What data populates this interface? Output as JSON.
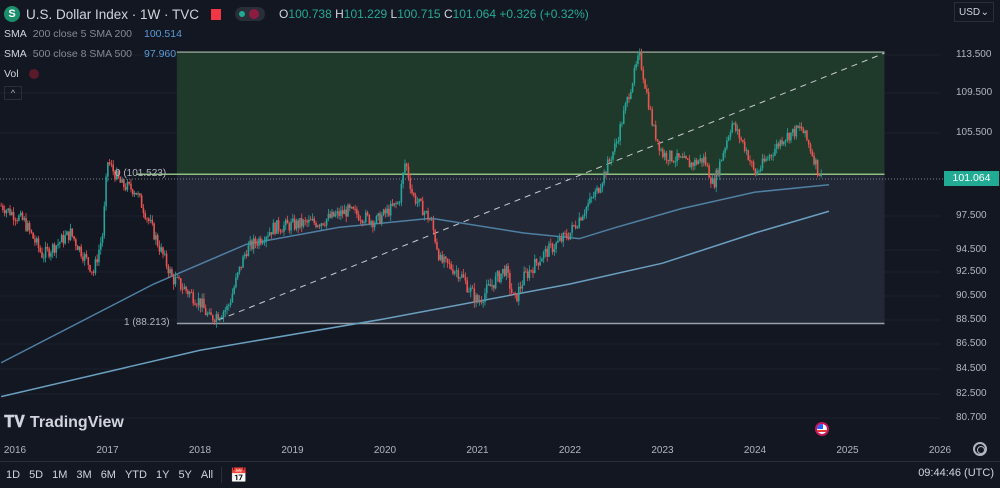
{
  "header": {
    "symbol_title": "U.S. Dollar Index · 1W · TVC",
    "logo_letter": "S",
    "ohlc": {
      "o_label": "O",
      "o": "100.738",
      "h_label": "H",
      "h": "101.229",
      "l_label": "L",
      "l": "100.715",
      "c_label": "C",
      "c": "101.064",
      "change": "+0.326 (+0.32%)"
    }
  },
  "indicators": [
    {
      "name": "SMA",
      "params": "200 close 5 SMA 200",
      "value": "100.514"
    },
    {
      "name": "SMA",
      "params": "500 close 8 SMA 500",
      "value": "97.960"
    }
  ],
  "volume_label": "Vol",
  "currency": "USD",
  "current_price": "101.064",
  "brand": "TradingView",
  "timeframes": [
    "1D",
    "5D",
    "1M",
    "3M",
    "6M",
    "YTD",
    "1Y",
    "5Y",
    "All"
  ],
  "clock": "09:44:46 (UTC)",
  "fib_labels": {
    "level0": "0 (101.523)",
    "level1": "1 (88.213)"
  },
  "colors": {
    "up": "#26a69a",
    "down": "#ef5350",
    "sma200": "#4f7fa3",
    "sma500": "#6a9fc0",
    "zone_upper": "#1f3a2a",
    "zone_lower": "#232837",
    "accent": "#22ab94"
  },
  "chart_data": {
    "type": "candlestick",
    "y_scale": "log-like",
    "ylim": [
      79.5,
      116
    ],
    "y_ticks": [
      "113.500",
      "109.500",
      "105.500",
      "97.500",
      "94.500",
      "92.500",
      "90.500",
      "88.500",
      "86.500",
      "84.500",
      "82.500",
      "80.700"
    ],
    "x_ticks": [
      "2016",
      "2017",
      "2018",
      "2019",
      "2020",
      "2021",
      "2022",
      "2023",
      "2024",
      "2025",
      "2026"
    ],
    "close_path": [
      [
        2015.85,
        98.5
      ],
      [
        2016.1,
        97
      ],
      [
        2016.3,
        94
      ],
      [
        2016.6,
        96
      ],
      [
        2016.85,
        92.5
      ],
      [
        2016.95,
        96
      ],
      [
        2017.0,
        102.8
      ],
      [
        2017.15,
        100.5
      ],
      [
        2017.3,
        100
      ],
      [
        2017.5,
        96
      ],
      [
        2017.7,
        92
      ],
      [
        2018.0,
        90
      ],
      [
        2018.1,
        88.6
      ],
      [
        2018.3,
        89.5
      ],
      [
        2018.5,
        94.5
      ],
      [
        2018.8,
        96.5
      ],
      [
        2019.3,
        97
      ],
      [
        2019.6,
        98
      ],
      [
        2019.9,
        97
      ],
      [
        2020.15,
        98.8
      ],
      [
        2020.22,
        102.8
      ],
      [
        2020.3,
        99.5
      ],
      [
        2020.5,
        97
      ],
      [
        2020.6,
        93.5
      ],
      [
        2020.8,
        92.5
      ],
      [
        2021.0,
        90
      ],
      [
        2021.3,
        92.8
      ],
      [
        2021.4,
        90
      ],
      [
        2021.5,
        92
      ],
      [
        2021.7,
        94
      ],
      [
        2022.0,
        96
      ],
      [
        2022.3,
        100
      ],
      [
        2022.5,
        104.5
      ],
      [
        2022.75,
        113.5
      ],
      [
        2022.9,
        106
      ],
      [
        2023.0,
        103.5
      ],
      [
        2023.3,
        102.5
      ],
      [
        2023.45,
        103
      ],
      [
        2023.55,
        100.5
      ],
      [
        2023.75,
        106.5
      ],
      [
        2023.9,
        104
      ],
      [
        2024.0,
        101.5
      ],
      [
        2024.3,
        105
      ],
      [
        2024.5,
        106
      ],
      [
        2024.6,
        104
      ],
      [
        2024.72,
        101.064
      ]
    ],
    "sma200": [
      [
        2015.85,
        85
      ],
      [
        2017.5,
        91.5
      ],
      [
        2018.5,
        95
      ],
      [
        2019.5,
        96.5
      ],
      [
        2020.5,
        97.3
      ],
      [
        2021.5,
        96
      ],
      [
        2022.1,
        95.5
      ],
      [
        2022.5,
        96.5
      ],
      [
        2023.2,
        98.2
      ],
      [
        2024.0,
        99.8
      ],
      [
        2024.8,
        100.514
      ]
    ],
    "sma500": [
      [
        2015.85,
        82.3
      ],
      [
        2018.0,
        86
      ],
      [
        2020.0,
        88.6
      ],
      [
        2022.0,
        91.5
      ],
      [
        2023.0,
        93.3
      ],
      [
        2024.0,
        96
      ],
      [
        2024.8,
        97.96
      ]
    ],
    "fib_range": {
      "start": 2017.75,
      "end": 2025.4,
      "level0": 101.523,
      "level1": 88.213,
      "top": 113.8
    },
    "trendline": [
      [
        2018.2,
        88.5
      ],
      [
        2025.4,
        113.7
      ]
    ]
  }
}
